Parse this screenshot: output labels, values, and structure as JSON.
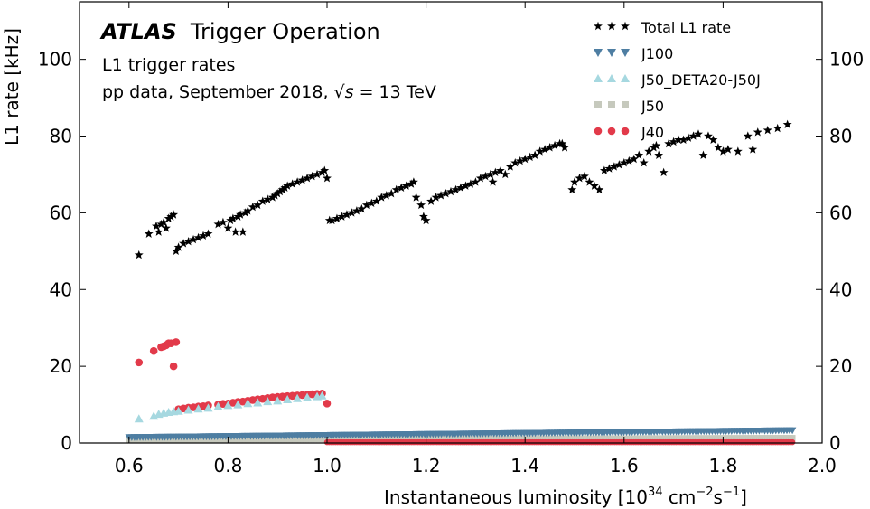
{
  "chart_data": {
    "type": "scatter",
    "brand": "ATLAS",
    "brand_subtitle": "Trigger Operation",
    "annotations": [
      "L1 trigger rates",
      "pp data, September 2018, ",
      "√s",
      " = 13 TeV"
    ],
    "xlabel": "Instantaneous luminosity [10",
    "xlabel_exp": "34",
    "xlabel_unit": " cm",
    "xlabel_unit_exp1": "−2",
    "xlabel_unit_mid": "s",
    "xlabel_unit_exp2": "−1",
    "xlabel_close": "]",
    "ylabel": "L1 rate [kHz]",
    "xlim": [
      0.5,
      2.0
    ],
    "ylim": [
      0,
      115
    ],
    "xticks": [
      0.6,
      0.8,
      1.0,
      1.2,
      1.4,
      1.6,
      1.8,
      2.0
    ],
    "xtick_labels": [
      "0.6",
      "0.8",
      "1.0",
      "1.2",
      "1.4",
      "1.6",
      "1.8",
      "2.0"
    ],
    "yticks": [
      0,
      20,
      40,
      60,
      80,
      100
    ],
    "ytick_labels": [
      "0",
      "20",
      "40",
      "60",
      "80",
      "100"
    ],
    "legend_position": "top-right",
    "series": [
      {
        "name": "Total L1 rate",
        "marker": "star",
        "color": "#000000",
        "points": [
          [
            0.62,
            49
          ],
          [
            0.64,
            54.5
          ],
          [
            0.655,
            56.5
          ],
          [
            0.66,
            55
          ],
          [
            0.665,
            57
          ],
          [
            0.67,
            57.5
          ],
          [
            0.675,
            56
          ],
          [
            0.68,
            58.5
          ],
          [
            0.685,
            59
          ],
          [
            0.69,
            59.5
          ],
          [
            0.695,
            50
          ],
          [
            0.7,
            51
          ],
          [
            0.71,
            52
          ],
          [
            0.72,
            52.5
          ],
          [
            0.73,
            53
          ],
          [
            0.74,
            53.5
          ],
          [
            0.75,
            54
          ],
          [
            0.76,
            54.5
          ],
          [
            0.78,
            57
          ],
          [
            0.79,
            57.5
          ],
          [
            0.8,
            56
          ],
          [
            0.805,
            58
          ],
          [
            0.81,
            58.5
          ],
          [
            0.815,
            55
          ],
          [
            0.82,
            59
          ],
          [
            0.825,
            59.5
          ],
          [
            0.83,
            55
          ],
          [
            0.835,
            60
          ],
          [
            0.84,
            60.5
          ],
          [
            0.85,
            61.5
          ],
          [
            0.86,
            62
          ],
          [
            0.87,
            63
          ],
          [
            0.88,
            63.5
          ],
          [
            0.89,
            64
          ],
          [
            0.895,
            64.5
          ],
          [
            0.9,
            65
          ],
          [
            0.905,
            65.5
          ],
          [
            0.91,
            66
          ],
          [
            0.915,
            66.5
          ],
          [
            0.92,
            67
          ],
          [
            0.93,
            67.5
          ],
          [
            0.94,
            68
          ],
          [
            0.95,
            68.5
          ],
          [
            0.96,
            69
          ],
          [
            0.97,
            69.5
          ],
          [
            0.98,
            70
          ],
          [
            0.99,
            70.5
          ],
          [
            0.995,
            71
          ],
          [
            1.0,
            69
          ],
          [
            1.005,
            58
          ],
          [
            1.01,
            58
          ],
          [
            1.02,
            58.5
          ],
          [
            1.03,
            59
          ],
          [
            1.04,
            59.5
          ],
          [
            1.05,
            60
          ],
          [
            1.06,
            60.5
          ],
          [
            1.07,
            61
          ],
          [
            1.08,
            62
          ],
          [
            1.09,
            62.5
          ],
          [
            1.1,
            63
          ],
          [
            1.11,
            64
          ],
          [
            1.12,
            64.5
          ],
          [
            1.13,
            65
          ],
          [
            1.14,
            66
          ],
          [
            1.15,
            66.5
          ],
          [
            1.16,
            67
          ],
          [
            1.17,
            67.5
          ],
          [
            1.175,
            68
          ],
          [
            1.18,
            64
          ],
          [
            1.19,
            62
          ],
          [
            1.195,
            59
          ],
          [
            1.2,
            58
          ],
          [
            1.21,
            63
          ],
          [
            1.22,
            64
          ],
          [
            1.23,
            64.5
          ],
          [
            1.24,
            65
          ],
          [
            1.25,
            65.5
          ],
          [
            1.26,
            66
          ],
          [
            1.27,
            66.5
          ],
          [
            1.28,
            67
          ],
          [
            1.29,
            67.5
          ],
          [
            1.3,
            68
          ],
          [
            1.31,
            69
          ],
          [
            1.32,
            69.5
          ],
          [
            1.33,
            70
          ],
          [
            1.335,
            68
          ],
          [
            1.34,
            70.5
          ],
          [
            1.35,
            71
          ],
          [
            1.36,
            70
          ],
          [
            1.37,
            72
          ],
          [
            1.38,
            73
          ],
          [
            1.39,
            73.5
          ],
          [
            1.4,
            74
          ],
          [
            1.41,
            74.5
          ],
          [
            1.42,
            75
          ],
          [
            1.43,
            76
          ],
          [
            1.44,
            76.5
          ],
          [
            1.45,
            77
          ],
          [
            1.46,
            77.5
          ],
          [
            1.47,
            78
          ],
          [
            1.475,
            78
          ],
          [
            1.48,
            77
          ],
          [
            1.495,
            66
          ],
          [
            1.5,
            68
          ],
          [
            1.51,
            69
          ],
          [
            1.52,
            69.5
          ],
          [
            1.53,
            68
          ],
          [
            1.54,
            67
          ],
          [
            1.55,
            66
          ],
          [
            1.56,
            71
          ],
          [
            1.57,
            71.5
          ],
          [
            1.58,
            72
          ],
          [
            1.59,
            72.5
          ],
          [
            1.6,
            73
          ],
          [
            1.61,
            73.5
          ],
          [
            1.62,
            74
          ],
          [
            1.63,
            75
          ],
          [
            1.64,
            73
          ],
          [
            1.65,
            76
          ],
          [
            1.66,
            77
          ],
          [
            1.665,
            77.5
          ],
          [
            1.67,
            75
          ],
          [
            1.68,
            70.5
          ],
          [
            1.69,
            78
          ],
          [
            1.7,
            78.5
          ],
          [
            1.71,
            79
          ],
          [
            1.72,
            79
          ],
          [
            1.73,
            79.5
          ],
          [
            1.74,
            80
          ],
          [
            1.75,
            80.5
          ],
          [
            1.76,
            75
          ],
          [
            1.77,
            80
          ],
          [
            1.78,
            79
          ],
          [
            1.79,
            77
          ],
          [
            1.8,
            76
          ],
          [
            1.81,
            76.5
          ],
          [
            1.83,
            76
          ],
          [
            1.85,
            80
          ],
          [
            1.86,
            76.5
          ],
          [
            1.87,
            81
          ],
          [
            1.89,
            81.5
          ],
          [
            1.91,
            82
          ],
          [
            1.93,
            83
          ]
        ]
      },
      {
        "name": "J100",
        "marker": "triangle-down",
        "color": "#4e7ea2",
        "x_from": 0.6,
        "x_to": 1.94,
        "y_from": 1.5,
        "y_to": 3.3
      },
      {
        "name": "J50_DETA20-J50J",
        "marker": "triangle-up",
        "color": "#a6d8e0",
        "points": [
          [
            0.62,
            6.3
          ],
          [
            0.65,
            7
          ],
          [
            0.66,
            7.5
          ],
          [
            0.67,
            7.8
          ],
          [
            0.68,
            8
          ],
          [
            0.69,
            8.2
          ],
          [
            0.7,
            8.3
          ],
          [
            0.72,
            8.6
          ],
          [
            0.74,
            8.9
          ],
          [
            0.76,
            9.1
          ],
          [
            0.78,
            9.5
          ],
          [
            0.8,
            9.8
          ],
          [
            0.82,
            10
          ],
          [
            0.84,
            10.3
          ],
          [
            0.86,
            10.5
          ],
          [
            0.88,
            10.8
          ],
          [
            0.9,
            11
          ],
          [
            0.92,
            11.3
          ],
          [
            0.94,
            11.6
          ],
          [
            0.96,
            11.9
          ],
          [
            0.98,
            12.1
          ],
          [
            0.99,
            12.3
          ]
        ]
      },
      {
        "name": "J50",
        "marker": "square",
        "color": "#c6c9bd",
        "x_from": 0.6,
        "x_to": 1.94,
        "y_from": 0.9,
        "y_to": 1.3
      },
      {
        "name": "J40",
        "marker": "circle",
        "color": "#e23a4a",
        "points": [
          [
            0.62,
            21
          ],
          [
            0.65,
            24
          ],
          [
            0.665,
            25
          ],
          [
            0.67,
            25.2
          ],
          [
            0.675,
            25.5
          ],
          [
            0.68,
            26
          ],
          [
            0.685,
            26
          ],
          [
            0.69,
            20
          ],
          [
            0.695,
            26.3
          ],
          [
            0.7,
            8.8
          ],
          [
            0.71,
            9
          ],
          [
            0.72,
            9.2
          ],
          [
            0.73,
            9.3
          ],
          [
            0.74,
            9.5
          ],
          [
            0.75,
            9.6
          ],
          [
            0.76,
            9.8
          ],
          [
            0.78,
            10
          ],
          [
            0.79,
            10.2
          ],
          [
            0.8,
            10.3
          ],
          [
            0.81,
            10.5
          ],
          [
            0.82,
            10.7
          ],
          [
            0.83,
            10.8
          ],
          [
            0.84,
            11
          ],
          [
            0.85,
            11.2
          ],
          [
            0.86,
            11.4
          ],
          [
            0.87,
            11.5
          ],
          [
            0.88,
            11.7
          ],
          [
            0.89,
            11.9
          ],
          [
            0.9,
            12
          ],
          [
            0.91,
            12.1
          ],
          [
            0.92,
            12.2
          ],
          [
            0.93,
            12.3
          ],
          [
            0.94,
            12.4
          ],
          [
            0.95,
            12.5
          ],
          [
            0.96,
            12.6
          ],
          [
            0.97,
            12.7
          ],
          [
            0.98,
            12.8
          ],
          [
            0.99,
            12.9
          ],
          [
            1.0,
            10.3
          ]
        ],
        "tail_x_from": 1.0,
        "tail_x_to": 1.94,
        "tail_y": 0.2
      }
    ]
  }
}
